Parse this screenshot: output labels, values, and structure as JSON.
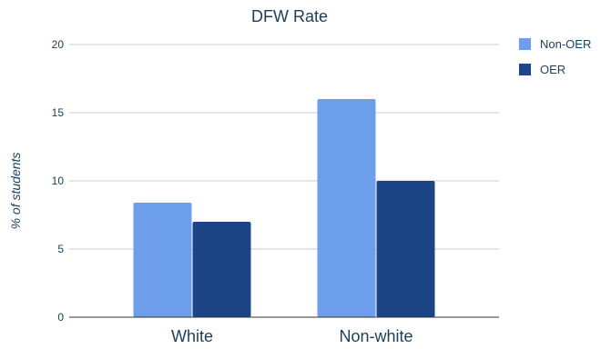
{
  "chart_data": {
    "type": "bar",
    "title": "DFW Rate",
    "ylabel": "% of students",
    "xlabel": "",
    "categories": [
      "White",
      "Non-white"
    ],
    "series": [
      {
        "name": "Non-OER",
        "color": "#6d9eeb",
        "values": [
          8.4,
          16.0
        ]
      },
      {
        "name": "OER",
        "color": "#1c4587",
        "values": [
          7.0,
          10.0
        ]
      }
    ],
    "ylim": [
      0,
      20
    ],
    "yticks": [
      "0",
      "5",
      "10",
      "15",
      "20"
    ],
    "ytick_values": [
      0,
      5,
      10,
      15,
      20
    ],
    "grid": true,
    "legend_position": "top-right",
    "text_color": "#1c3d5a",
    "grid_color": "#cccccc",
    "axis_color": "#333333"
  }
}
